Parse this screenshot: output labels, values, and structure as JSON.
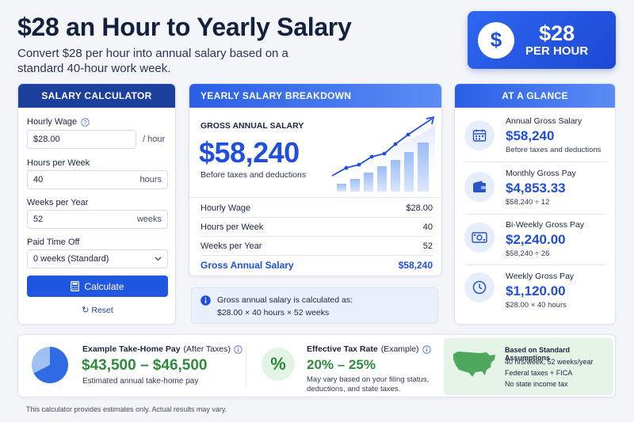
{
  "header": {
    "title": "$28 an Hour to Yearly Salary",
    "subtitle": "Convert $28 per hour into annual salary based on a standard 40-hour work week.",
    "badge_amount": "$28",
    "badge_unit": "PER HOUR",
    "badge_symbol": "$"
  },
  "calculator": {
    "heading": "SALARY CALCULATOR",
    "hourly_wage_label": "Hourly Wage",
    "hourly_wage_value": "$28.00",
    "hourly_wage_suffix": "/ hour",
    "hours_label": "Hours per Week",
    "hours_value": "40",
    "hours_suffix": "hours",
    "weeks_label": "Weeks per Year",
    "weeks_value": "52",
    "weeks_suffix": "weeks",
    "pto_label": "Paid Time Off",
    "pto_value": "0 weeks (Standard)",
    "calculate_label": "Calculate",
    "reset_label": "Reset"
  },
  "breakdown": {
    "heading": "YEARLY SALARY BREAKDOWN",
    "gross_label": "GROSS ANNUAL SALARY",
    "gross_value": "$58,240",
    "gross_note": "Before taxes and deductions",
    "rows": [
      {
        "label": "Hourly Wage",
        "value": "$28.00"
      },
      {
        "label": "Hours per Week",
        "value": "40"
      },
      {
        "label": "Weeks per Year",
        "value": "52"
      }
    ],
    "total_label": "Gross Annual Salary",
    "total_value": "$58,240"
  },
  "info": {
    "line1": "Gross annual salary is calculated as:",
    "line2": "$28.00 × 40 hours × 52 weeks"
  },
  "glance": {
    "heading": "AT A GLANCE",
    "items": [
      {
        "title": "Annual Gross Salary",
        "value": "$58,240",
        "sub": "Before taxes and deductions",
        "icon": "calendar-icon"
      },
      {
        "title": "Monthly Gross Pay",
        "value": "$4,853.33",
        "sub": "$58,240 ÷ 12",
        "icon": "wallet-icon"
      },
      {
        "title": "Bi-Weekly Gross Pay",
        "value": "$2,240.00",
        "sub": "$58,240 ÷ 26",
        "icon": "cash-icon"
      },
      {
        "title": "Weekly Gross Pay",
        "value": "$1,120.00",
        "sub": "$28.00 × 40 hours",
        "icon": "clock-icon"
      }
    ]
  },
  "bottom": {
    "takehome_title": "Example Take-Home Pay",
    "takehome_qualifier": "(After Taxes)",
    "takehome_value": "$43,500 – $46,500",
    "takehome_sub": "Estimated annual take-home pay",
    "tax_title": "Effective Tax Rate",
    "tax_qualifier": "(Example)",
    "tax_symbol": "%",
    "tax_value": "20% – 25%",
    "tax_sub_1": "May vary based on your filing status,",
    "tax_sub_2": "deductions, and state taxes.",
    "assump_title": "Based on Standard Assumptions",
    "assump_1": "40 hrs/week, 52 weeks/year",
    "assump_2": "Federal taxes + FICA",
    "assump_3": "No state income tax"
  },
  "footer": "This calculator provides estimates only. Actual results may vary.",
  "colors": {
    "primary": "#1f57e0",
    "navy": "#1d3f9e",
    "green": "#2e8b3e",
    "text": "#1a2440"
  }
}
